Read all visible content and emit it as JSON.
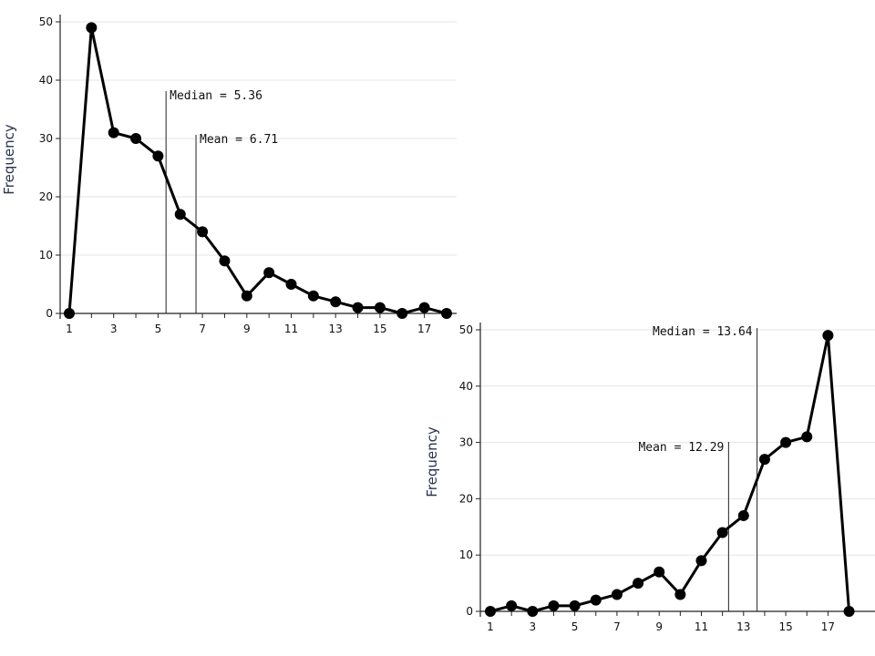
{
  "chart_data": [
    {
      "type": "line",
      "ylabel": "Frequency",
      "xlabel": "",
      "x": [
        1,
        2,
        3,
        4,
        5,
        6,
        7,
        8,
        9,
        10,
        11,
        12,
        13,
        14,
        15,
        16,
        17,
        18
      ],
      "xtick_labels": [
        "1",
        "3",
        "5",
        "7",
        "9",
        "11",
        "13",
        "15",
        "17"
      ],
      "series": [
        {
          "values": [
            0,
            49,
            31,
            30,
            27,
            17,
            14,
            9,
            3,
            7,
            5,
            3,
            2,
            1,
            1,
            0,
            1,
            0
          ]
        }
      ],
      "ylim": [
        0,
        50
      ],
      "yticks": [
        0,
        10,
        20,
        30,
        40,
        50
      ],
      "grid": "horizontal",
      "annotations": [
        {
          "label": "Median = 5.36",
          "x": 5.36
        },
        {
          "label": "Mean = 6.71",
          "x": 6.71
        }
      ]
    },
    {
      "type": "line",
      "ylabel": "Frequency",
      "xlabel": "",
      "x": [
        1,
        2,
        3,
        4,
        5,
        6,
        7,
        8,
        9,
        10,
        11,
        12,
        13,
        14,
        15,
        16,
        17,
        18
      ],
      "xtick_labels": [
        "1",
        "3",
        "5",
        "7",
        "9",
        "11",
        "13",
        "15",
        "17"
      ],
      "series": [
        {
          "values": [
            0,
            1,
            0,
            1,
            1,
            2,
            3,
            5,
            7,
            3,
            9,
            14,
            17,
            27,
            30,
            31,
            49,
            0
          ]
        }
      ],
      "ylim": [
        0,
        50
      ],
      "yticks": [
        0,
        10,
        20,
        30,
        40,
        50
      ],
      "grid": "horizontal",
      "annotations": [
        {
          "label": "Median = 13.64",
          "x": 13.64
        },
        {
          "label": "Mean = 12.29",
          "x": 12.29
        }
      ]
    }
  ]
}
